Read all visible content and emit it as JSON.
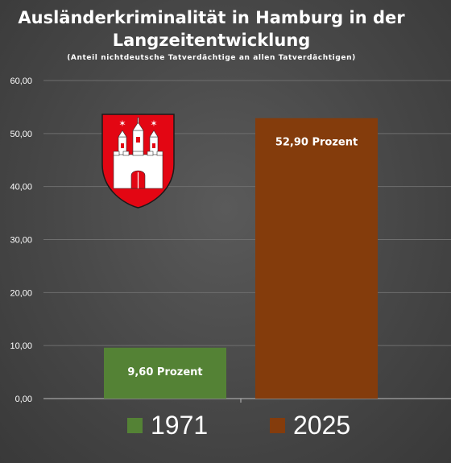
{
  "title": "Ausländerkriminalität in Hamburg in der Langzeitentwicklung",
  "subtitle": "(Anteil nichtdeutsche Tatverdächtige an allen Tatverdächtigen)",
  "chart_data": {
    "type": "bar",
    "categories": [
      "1971",
      "2025"
    ],
    "values": [
      9.6,
      52.9
    ],
    "data_labels": [
      "9,60 Prozent",
      "52,90 Prozent"
    ],
    "colors": [
      "#548235",
      "#843c0c"
    ],
    "ylim": [
      0,
      60
    ],
    "yticks": [
      "0,00",
      "10,00",
      "20,00",
      "30,00",
      "40,00",
      "50,00",
      "60,00"
    ],
    "grid": true,
    "legend_position": "bottom"
  },
  "legend": [
    {
      "label": "1971",
      "color": "#548235"
    },
    {
      "label": "2025",
      "color": "#843c0c"
    }
  ],
  "emblem": "hamburg-coat-of-arms"
}
